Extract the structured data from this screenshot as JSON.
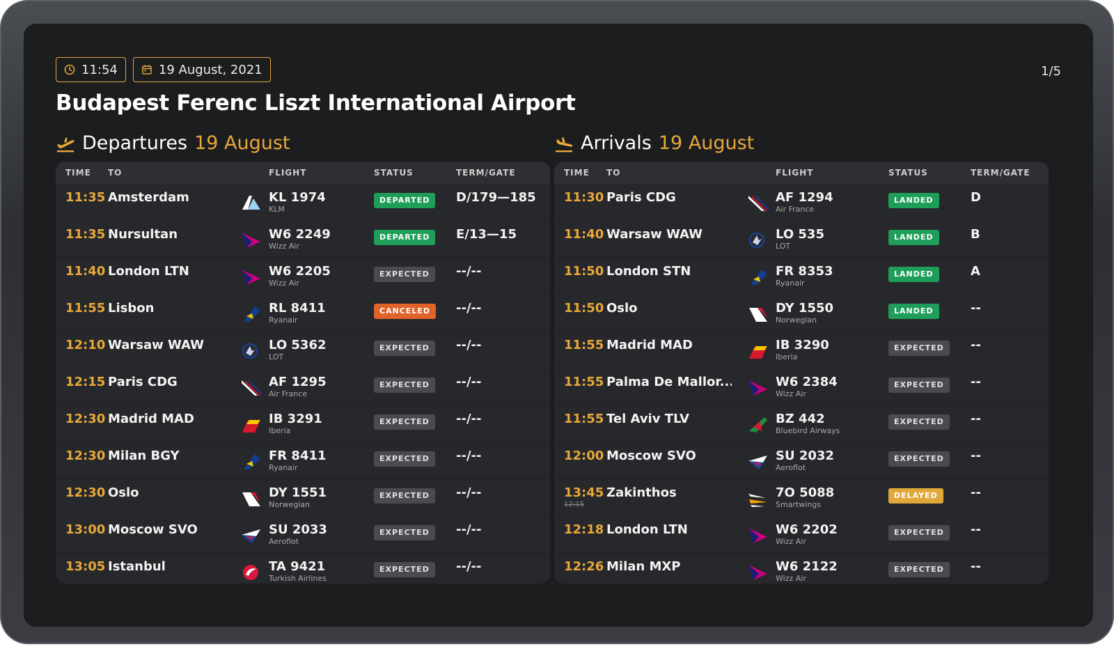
{
  "header": {
    "time": "11:54",
    "date": "19 August, 2021",
    "pager": "1/5",
    "title": "Budapest Ferenc Liszt International Airport"
  },
  "colors": {
    "accent": "#e8a83a",
    "departed": "#1f9e5a",
    "canceled": "#e0632a",
    "delayed": "#e0a73a",
    "expected": "#4a4b4f"
  },
  "departures": {
    "title": "Departures",
    "date": "19 August",
    "icon": "plane-takeoff-icon",
    "columns": {
      "time": "TIME",
      "to": "TO",
      "flight": "FLIGHT",
      "status": "STATUS",
      "gate": "TERM/GATE"
    },
    "rows": [
      {
        "time": "11:35",
        "dest": "Amsterdam",
        "flight": "KL 1974",
        "airline": "KLM",
        "logo": "klm",
        "status": "DEPARTED",
        "status_kind": "departed",
        "gate": "D/179—185"
      },
      {
        "time": "11:35",
        "dest": "Nursultan",
        "flight": "W6 2249",
        "airline": "Wizz Air",
        "logo": "wizz",
        "status": "DEPARTED",
        "status_kind": "departed",
        "gate": "E/13—15"
      },
      {
        "time": "11:40",
        "dest": "London LTN",
        "flight": "W6 2205",
        "airline": "Wizz Air",
        "logo": "wizz",
        "status": "EXPECTED",
        "status_kind": "expected",
        "gate": "--/--"
      },
      {
        "time": "11:55",
        "dest": "Lisbon",
        "flight": "RL 8411",
        "airline": "Ryanair",
        "logo": "ryanair",
        "status": "CANCELED",
        "status_kind": "canceled",
        "gate": "--/--"
      },
      {
        "time": "12:10",
        "dest": "Warsaw WAW",
        "flight": "LO 5362",
        "airline": "LOT",
        "logo": "lot",
        "status": "EXPECTED",
        "status_kind": "expected",
        "gate": "--/--"
      },
      {
        "time": "12:15",
        "dest": "Paris CDG",
        "flight": "AF 1295",
        "airline": "Air France",
        "logo": "airfrance",
        "status": "EXPECTED",
        "status_kind": "expected",
        "gate": "--/--"
      },
      {
        "time": "12:30",
        "dest": "Madrid MAD",
        "flight": "IB 3291",
        "airline": "Iberia",
        "logo": "iberia",
        "status": "EXPECTED",
        "status_kind": "expected",
        "gate": "--/--"
      },
      {
        "time": "12:30",
        "dest": "Milan BGY",
        "flight": "FR 8411",
        "airline": "Ryanair",
        "logo": "ryanair",
        "status": "EXPECTED",
        "status_kind": "expected",
        "gate": "--/--"
      },
      {
        "time": "12:30",
        "dest": "Oslo",
        "flight": "DY 1551",
        "airline": "Norwegian",
        "logo": "norwegian",
        "status": "EXPECTED",
        "status_kind": "expected",
        "gate": "--/--"
      },
      {
        "time": "13:00",
        "dest": "Moscow SVO",
        "flight": "SU 2033",
        "airline": "Aeroflot",
        "logo": "aeroflot",
        "status": "EXPECTED",
        "status_kind": "expected",
        "gate": "--/--"
      },
      {
        "time": "13:05",
        "dest": "Istanbul",
        "flight": "TA 9421",
        "airline": "Turkish Airlines",
        "logo": "turkish",
        "status": "EXPECTED",
        "status_kind": "expected",
        "gate": "--/--"
      }
    ]
  },
  "arrivals": {
    "title": "Arrivals",
    "date": "19 August",
    "icon": "plane-landing-icon",
    "columns": {
      "time": "TIME",
      "to": "TO",
      "flight": "FLIGHT",
      "status": "STATUS",
      "gate": "TERM/GATE"
    },
    "rows": [
      {
        "time": "11:30",
        "dest": "Paris CDG",
        "flight": "AF 1294",
        "airline": "Air France",
        "logo": "airfrance",
        "status": "LANDED",
        "status_kind": "landed",
        "gate": "D"
      },
      {
        "time": "11:40",
        "dest": "Warsaw WAW",
        "flight": "LO 535",
        "airline": "LOT",
        "logo": "lot",
        "status": "LANDED",
        "status_kind": "landed",
        "gate": "B"
      },
      {
        "time": "11:50",
        "dest": "London STN",
        "flight": "FR 8353",
        "airline": "Ryanair",
        "logo": "ryanair",
        "status": "LANDED",
        "status_kind": "landed",
        "gate": "A"
      },
      {
        "time": "11:50",
        "dest": "Oslo",
        "flight": "DY 1550",
        "airline": "Norwegian",
        "logo": "norwegian",
        "status": "LANDED",
        "status_kind": "landed",
        "gate": "--"
      },
      {
        "time": "11:55",
        "dest": "Madrid MAD",
        "flight": "IB 3290",
        "airline": "Iberia",
        "logo": "iberia",
        "status": "EXPECTED",
        "status_kind": "expected",
        "gate": "--"
      },
      {
        "time": "11:55",
        "dest": "Palma De Mallor...",
        "flight": "W6 2384",
        "airline": "Wizz Air",
        "logo": "wizz",
        "status": "EXPECTED",
        "status_kind": "expected",
        "gate": "--"
      },
      {
        "time": "11:55",
        "dest": "Tel Aviv TLV",
        "flight": "BZ 442",
        "airline": "Bluebird Airways",
        "logo": "bluebird",
        "status": "EXPECTED",
        "status_kind": "expected",
        "gate": "--"
      },
      {
        "time": "12:00",
        "dest": "Moscow SVO",
        "flight": "SU 2032",
        "airline": "Aeroflot",
        "logo": "aeroflot",
        "status": "EXPECTED",
        "status_kind": "expected",
        "gate": "--"
      },
      {
        "time": "13:45",
        "time_old": "12:15",
        "dest": "Zakinthos",
        "flight": "7O 5088",
        "airline": "Smartwings",
        "logo": "smartwings",
        "status": "DELAYED",
        "status_kind": "delayed",
        "gate": "--"
      },
      {
        "time": "12:18",
        "dest": "London LTN",
        "flight": "W6 2202",
        "airline": "Wizz Air",
        "logo": "wizz",
        "status": "EXPECTED",
        "status_kind": "expected",
        "gate": "--"
      },
      {
        "time": "12:26",
        "dest": "Milan MXP",
        "flight": "W6 2122",
        "airline": "Wizz Air",
        "logo": "wizz",
        "status": "EXPECTED",
        "status_kind": "expected",
        "gate": "--"
      }
    ]
  }
}
